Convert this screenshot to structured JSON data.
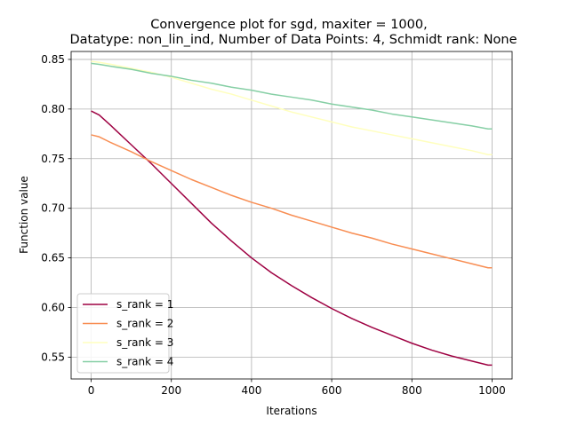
{
  "chart_data": {
    "type": "line",
    "title_line1": "Convergence plot for sgd, maxiter = 1000,",
    "title_line2": "Datatype: non_lin_ind, Number of Data Points: 4, Schmidt rank: None",
    "xlabel": "Iterations",
    "ylabel": "Function value",
    "xlim": [
      -50,
      1050
    ],
    "ylim": [
      0.528,
      0.858
    ],
    "xticks": [
      0,
      200,
      400,
      600,
      800,
      1000
    ],
    "yticks": [
      0.55,
      0.6,
      0.65,
      0.7,
      0.75,
      0.8,
      0.85
    ],
    "grid": true,
    "legend_position": "lower-left",
    "x": [
      0,
      20,
      50,
      100,
      150,
      200,
      250,
      300,
      350,
      400,
      450,
      500,
      550,
      600,
      650,
      700,
      750,
      800,
      850,
      900,
      950,
      990,
      1000
    ],
    "series": [
      {
        "name": "s_rank = 1",
        "color": "#9e0142",
        "values": [
          0.798,
          0.794,
          0.783,
          0.764,
          0.745,
          0.725,
          0.705,
          0.685,
          0.667,
          0.65,
          0.635,
          0.622,
          0.61,
          0.599,
          0.589,
          0.58,
          0.572,
          0.564,
          0.557,
          0.551,
          0.546,
          0.542,
          0.542
        ]
      },
      {
        "name": "s_rank = 2",
        "color": "#f88d52",
        "values": [
          0.774,
          0.772,
          0.766,
          0.757,
          0.747,
          0.738,
          0.729,
          0.721,
          0.713,
          0.706,
          0.7,
          0.693,
          0.687,
          0.681,
          0.675,
          0.67,
          0.664,
          0.659,
          0.654,
          0.649,
          0.644,
          0.64,
          0.64
        ]
      },
      {
        "name": "s_rank = 3",
        "color": "#ffffbe",
        "values": [
          0.848,
          0.847,
          0.845,
          0.841,
          0.837,
          0.832,
          0.826,
          0.82,
          0.815,
          0.809,
          0.803,
          0.797,
          0.792,
          0.787,
          0.782,
          0.778,
          0.774,
          0.77,
          0.766,
          0.762,
          0.758,
          0.754,
          0.754
        ]
      },
      {
        "name": "s_rank = 4",
        "color": "#86cfa5",
        "values": [
          0.846,
          0.845,
          0.843,
          0.84,
          0.836,
          0.833,
          0.829,
          0.826,
          0.822,
          0.819,
          0.815,
          0.812,
          0.809,
          0.805,
          0.802,
          0.799,
          0.795,
          0.792,
          0.789,
          0.786,
          0.783,
          0.78,
          0.78
        ]
      }
    ]
  }
}
